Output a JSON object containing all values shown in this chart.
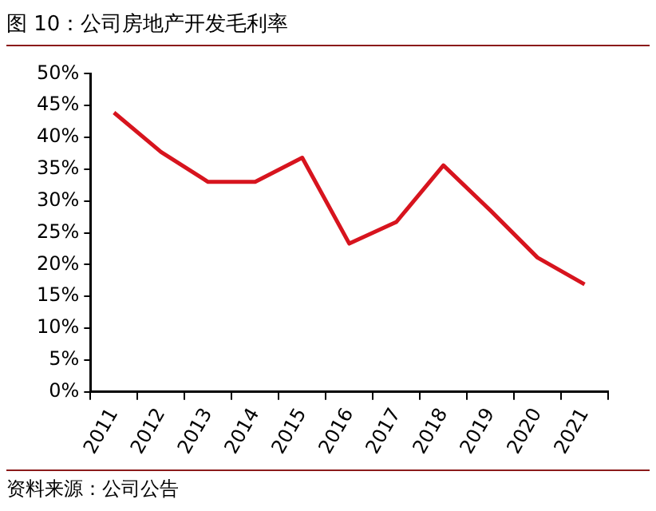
{
  "chart_data": {
    "type": "line",
    "title": "图 10：公司房地产开发毛利率",
    "categories": [
      "2011",
      "2012",
      "2013",
      "2014",
      "2015",
      "2016",
      "2017",
      "2018",
      "2019",
      "2020",
      "2021"
    ],
    "series": [
      {
        "color": "#d7141e",
        "values": [
          43.9,
          37.7,
          33.0,
          33.0,
          36.8,
          23.3,
          26.7,
          35.6,
          28.5,
          21.1,
          16.9
        ]
      }
    ],
    "ylim": [
      0,
      50
    ],
    "yticks": [
      {
        "value": 0,
        "label": "0%"
      },
      {
        "value": 5,
        "label": "5%"
      },
      {
        "value": 10,
        "label": "10%"
      },
      {
        "value": 15,
        "label": "15%"
      },
      {
        "value": 20,
        "label": "20%"
      },
      {
        "value": 25,
        "label": "25%"
      },
      {
        "value": 30,
        "label": "30%"
      },
      {
        "value": 35,
        "label": "35%"
      },
      {
        "value": 40,
        "label": "40%"
      },
      {
        "value": 45,
        "label": "45%"
      },
      {
        "value": 50,
        "label": "50%"
      }
    ],
    "grid": false,
    "legend": false,
    "marker": "none",
    "line_style": "solid",
    "annotations": [
      "资料来源：公司公告"
    ]
  }
}
